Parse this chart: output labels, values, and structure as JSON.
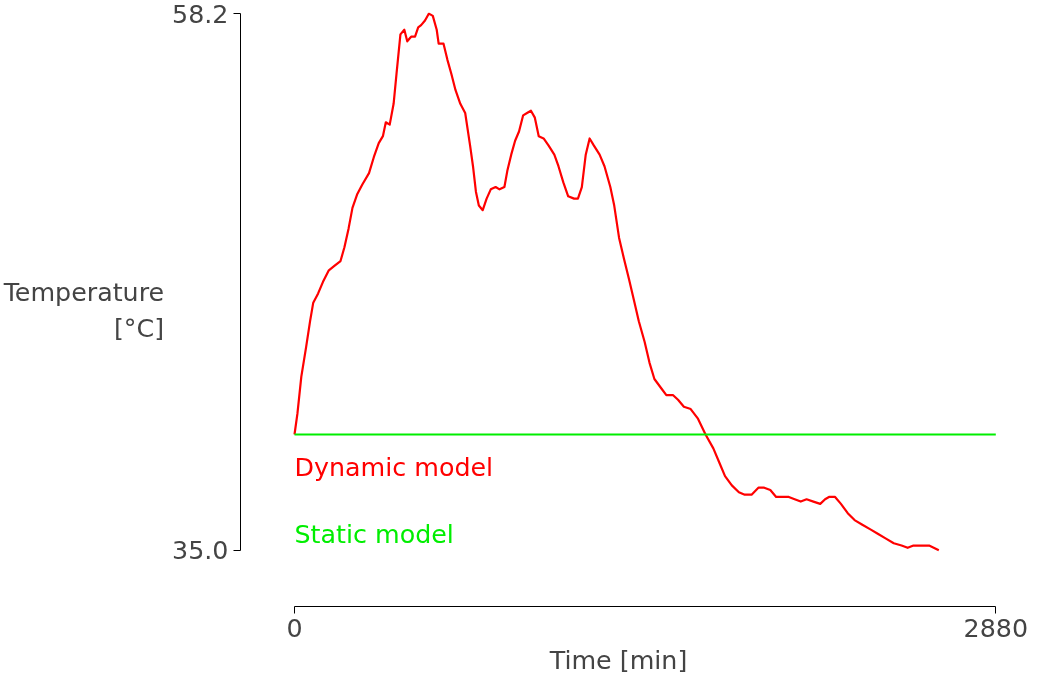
{
  "chart_data": {
    "type": "line",
    "xlabel": "Time [min]",
    "ylabel": "Temperature\n[°C]",
    "xlim": [
      0,
      2880
    ],
    "ylim": [
      35.0,
      58.2
    ],
    "xticks": [
      0,
      2880
    ],
    "yticks": [
      {
        "value": 35.0,
        "label": "35.0"
      },
      {
        "value": 58.2,
        "label": "58.2"
      }
    ],
    "grid": false,
    "legend": false,
    "series": [
      {
        "name": "Dynamic model",
        "color": "#ff0000",
        "x": [
          0,
          12,
          28,
          48,
          64,
          77,
          97,
          117,
          141,
          165,
          189,
          205,
          222,
          238,
          258,
          278,
          306,
          326,
          346,
          363,
          375,
          391,
          407,
          419,
          435,
          451,
          463,
          479,
          495,
          508,
          520,
          536,
          552,
          568,
          584,
          592,
          612,
          628,
          644,
          661,
          681,
          701,
          721,
          733,
          745,
          757,
          773,
          789,
          806,
          826,
          842,
          862,
          874,
          890,
          906,
          922,
          939,
          955,
          971,
          987,
          1003,
          1023,
          1043,
          1067,
          1084,
          1104,
          1124,
          1148,
          1164,
          1180,
          1196,
          1212,
          1229,
          1253,
          1273,
          1297,
          1313,
          1333,
          1353,
          1374,
          1394,
          1414,
          1438,
          1458,
          1478,
          1506,
          1527,
          1555,
          1575,
          1599,
          1627,
          1656,
          1688,
          1720,
          1744,
          1768,
          1796,
          1825,
          1849,
          1877,
          1905,
          1929,
          1954,
          1978,
          2002,
          2030,
          2054,
          2079,
          2103,
          2131,
          2159,
          2179,
          2195,
          2220,
          2244,
          2272,
          2300,
          2332,
          2365,
          2397,
          2429,
          2461,
          2493,
          2518,
          2542,
          2574,
          2606,
          2646
        ],
        "values": [
          40.0,
          40.9,
          42.5,
          43.8,
          44.9,
          45.7,
          46.1,
          46.6,
          47.1,
          47.3,
          47.5,
          48.1,
          48.9,
          49.8,
          50.4,
          50.8,
          51.3,
          52.0,
          52.6,
          52.9,
          53.5,
          53.4,
          54.3,
          55.6,
          57.3,
          57.5,
          57.0,
          57.2,
          57.2,
          57.6,
          57.7,
          57.9,
          58.2,
          58.1,
          57.5,
          56.9,
          56.9,
          56.2,
          55.6,
          54.9,
          54.3,
          53.9,
          52.5,
          51.6,
          50.5,
          49.9,
          49.7,
          50.2,
          50.6,
          50.7,
          50.6,
          50.7,
          51.4,
          52.1,
          52.7,
          53.1,
          53.8,
          53.9,
          54.0,
          53.7,
          52.9,
          52.8,
          52.5,
          52.1,
          51.6,
          50.9,
          50.3,
          50.2,
          50.2,
          50.7,
          52.1,
          52.8,
          52.5,
          52.1,
          51.6,
          50.7,
          49.9,
          48.5,
          47.6,
          46.7,
          45.8,
          44.9,
          44.0,
          43.1,
          42.4,
          42.0,
          41.7,
          41.7,
          41.5,
          41.2,
          41.1,
          40.7,
          40.0,
          39.4,
          38.8,
          38.2,
          37.8,
          37.5,
          37.4,
          37.4,
          37.7,
          37.7,
          37.6,
          37.3,
          37.3,
          37.3,
          37.2,
          37.1,
          37.2,
          37.1,
          37.0,
          37.2,
          37.3,
          37.3,
          37.0,
          36.6,
          36.3,
          36.1,
          35.9,
          35.7,
          35.5,
          35.3,
          35.2,
          35.1,
          35.2,
          35.2,
          35.2,
          35.0
        ]
      },
      {
        "name": "Static model",
        "color": "#00ee00",
        "x": [
          0,
          2880
        ],
        "values": [
          40.0,
          40.0
        ]
      }
    ]
  }
}
